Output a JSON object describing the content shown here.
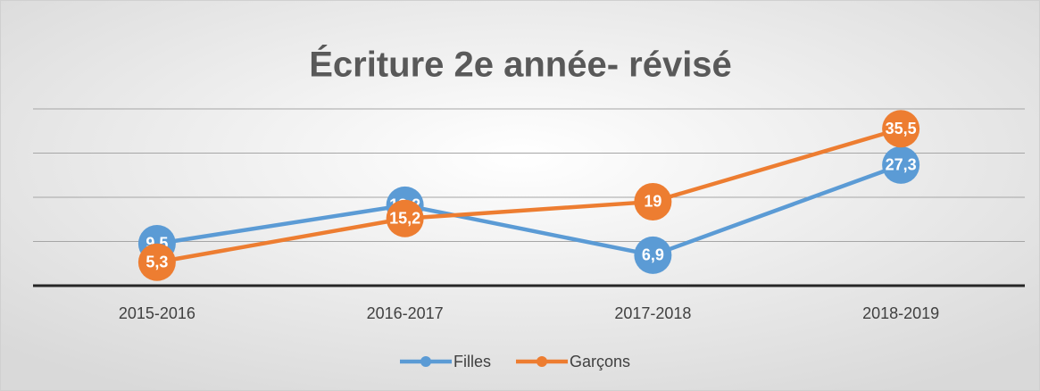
{
  "chart_data": {
    "type": "line",
    "title": "Écriture 2e année- révisé",
    "categories": [
      "2015-2016",
      "2016-2017",
      "2017-2018",
      "2018-2019"
    ],
    "series": [
      {
        "name": "Filles",
        "color": "#5b9bd5",
        "values": [
          9.5,
          18.2,
          6.9,
          27.3
        ],
        "value_labels": [
          "9,5",
          "18,2",
          "6,9",
          "27,3"
        ]
      },
      {
        "name": "Garçons",
        "color": "#ed7d31",
        "values": [
          5.3,
          15.2,
          19,
          35.5
        ],
        "value_labels": [
          "5,3",
          "15,2",
          "19",
          "35,5"
        ]
      }
    ],
    "ylim": [
      0,
      40
    ],
    "yticks": [
      0,
      10,
      20,
      30,
      40
    ],
    "grid": true,
    "legend": "bottom"
  }
}
